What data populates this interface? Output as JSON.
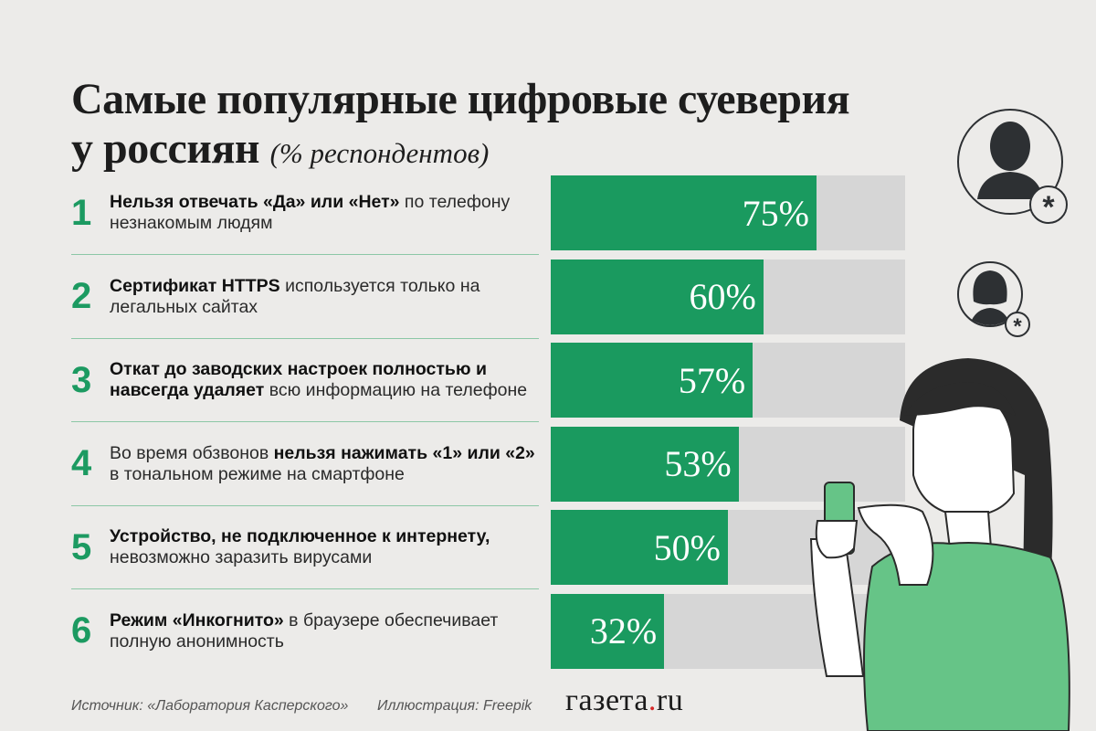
{
  "title": {
    "main": "Самые популярные цифровые суеверия у россиян",
    "sub": "(% респондентов)"
  },
  "chart_data": {
    "type": "bar",
    "categories": [
      "1",
      "2",
      "3",
      "4",
      "5",
      "6"
    ],
    "values": [
      75,
      60,
      57,
      53,
      50,
      32
    ],
    "value_labels": [
      "75%",
      "60%",
      "57%",
      "53%",
      "50%",
      "32%"
    ],
    "ylim": [
      0,
      100
    ],
    "orientation": "horizontal",
    "colors": {
      "fill": "#1a9a5f",
      "track": "#d6d6d6"
    }
  },
  "items": [
    {
      "num": "1",
      "parts": [
        {
          "b": true,
          "t": "Нельзя отвечать «Да» или «Нет»"
        },
        {
          "b": false,
          "t": " по телефону незнакомым людям"
        }
      ]
    },
    {
      "num": "2",
      "parts": [
        {
          "b": true,
          "t": "Сертификат HTTPS"
        },
        {
          "b": false,
          "t": " используется только на легальных сайтах"
        }
      ]
    },
    {
      "num": "3",
      "parts": [
        {
          "b": true,
          "t": "Откат до заводских настроек полностью и навсегда удаляет"
        },
        {
          "b": false,
          "t": " всю информацию на телефоне"
        }
      ]
    },
    {
      "num": "4",
      "parts": [
        {
          "b": false,
          "t": "Во время обзвонов "
        },
        {
          "b": true,
          "t": "нельзя нажимать «1» или «2»"
        },
        {
          "b": false,
          "t": " в тональном режиме на смартфоне"
        }
      ]
    },
    {
      "num": "5",
      "parts": [
        {
          "b": true,
          "t": "Устройство, не подключенное к интернету,"
        },
        {
          "b": false,
          "t": " невозможно заразить вирусами"
        }
      ]
    },
    {
      "num": "6",
      "parts": [
        {
          "b": true,
          "t": "Режим «Инкогнито»"
        },
        {
          "b": false,
          "t": " в браузере обеспечивает полную анонимность"
        }
      ]
    }
  ],
  "footer": {
    "source": "Источник: «Лаборатория Касперского»",
    "illustration": "Иллюстрация: Freepik",
    "brand_name": "газета",
    "brand_dot": ".",
    "brand_tld": "ru"
  },
  "icons": [
    "male-user-icon",
    "female-user-icon",
    "asterisk-icon",
    "woman-with-phone-illustration"
  ],
  "colors": {
    "accent": "#1a9a5f",
    "background": "#ecebe9",
    "brand_dot": "#d62828"
  }
}
